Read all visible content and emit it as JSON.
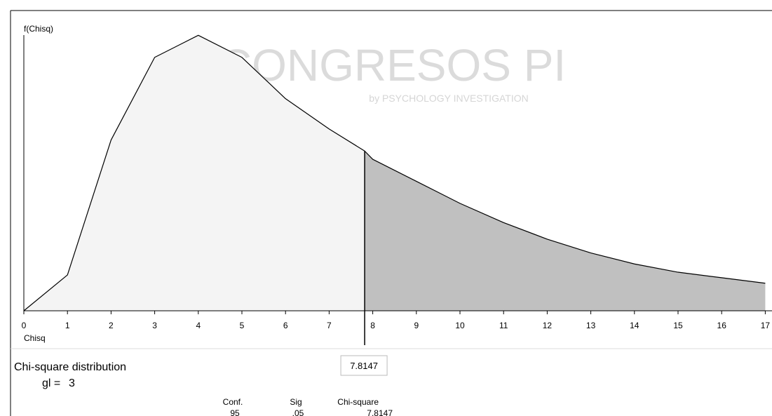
{
  "chart_data": {
    "type": "distribution",
    "y_label": "f(Chisq)",
    "x_label": "Chisq",
    "x": [
      0,
      1,
      2,
      3,
      4,
      5,
      6,
      7,
      7.8147,
      8,
      9,
      10,
      11,
      12,
      13,
      14,
      15,
      16,
      17
    ],
    "values": [
      0,
      0.13,
      0.62,
      0.92,
      1,
      0.92,
      0.77,
      0.66,
      0.58,
      0.55,
      0.47,
      0.39,
      0.32,
      0.26,
      0.21,
      0.17,
      0.14,
      0.12,
      0.1
    ],
    "xlim": [
      0,
      17.15
    ],
    "ylim": [
      0,
      1.09
    ],
    "xticks": [
      0,
      1,
      2,
      3,
      4,
      5,
      6,
      7,
      8,
      9,
      10,
      11,
      12,
      13,
      14,
      15,
      16,
      17
    ],
    "critical_value": 7.8147,
    "critical_label": "7.8147",
    "fill_color": "#f4f4f4",
    "tail_color": "#c0c0c0",
    "title": "Chi-square distribution",
    "df_label": "gl =",
    "df": 3,
    "table": {
      "headers": [
        "Conf.",
        "Sig",
        "Chi-square"
      ],
      "row": [
        "95",
        ".05",
        "7.8147"
      ]
    },
    "watermark": {
      "title": "CONGRESOS PI",
      "subtitle": "by PSYCHOLOGY INVESTIGATION"
    }
  }
}
